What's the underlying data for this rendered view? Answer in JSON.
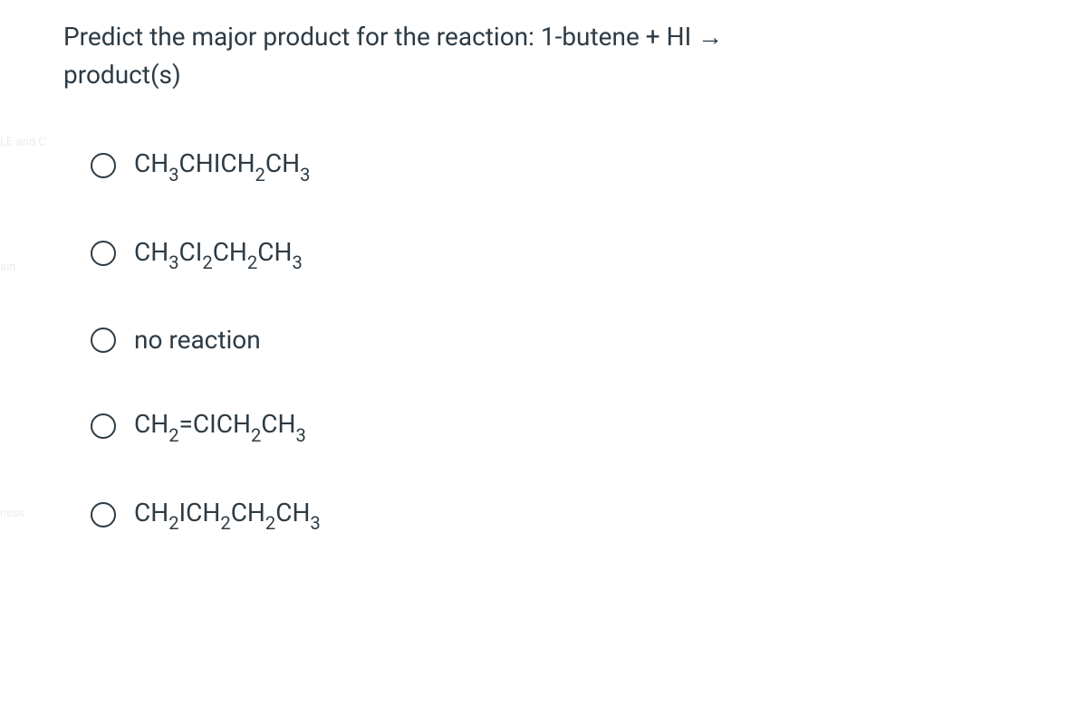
{
  "question": {
    "line1": "Predict the major product for the reaction: 1-butene + HI →",
    "line2": "product(s)"
  },
  "options": [
    {
      "id": "opt-1",
      "segments": [
        {
          "text": "CH",
          "sub": false
        },
        {
          "text": "3",
          "sub": true
        },
        {
          "text": "CHICH",
          "sub": false
        },
        {
          "text": "2",
          "sub": true
        },
        {
          "text": "CH",
          "sub": false
        },
        {
          "text": "3",
          "sub": true
        }
      ]
    },
    {
      "id": "opt-2",
      "segments": [
        {
          "text": "CH",
          "sub": false
        },
        {
          "text": "3",
          "sub": true
        },
        {
          "text": "CI",
          "sub": false
        },
        {
          "text": "2",
          "sub": true
        },
        {
          "text": "CH",
          "sub": false
        },
        {
          "text": "2",
          "sub": true
        },
        {
          "text": "CH",
          "sub": false
        },
        {
          "text": "3",
          "sub": true
        }
      ]
    },
    {
      "id": "opt-3",
      "segments": [
        {
          "text": "no reaction",
          "sub": false
        }
      ]
    },
    {
      "id": "opt-4",
      "segments": [
        {
          "text": "CH",
          "sub": false
        },
        {
          "text": "2",
          "sub": true
        },
        {
          "text": "=CICH",
          "sub": false
        },
        {
          "text": "2",
          "sub": true
        },
        {
          "text": "CH",
          "sub": false
        },
        {
          "text": "3",
          "sub": true
        }
      ]
    },
    {
      "id": "opt-5",
      "segments": [
        {
          "text": "CH",
          "sub": false
        },
        {
          "text": "2",
          "sub": true
        },
        {
          "text": "ICH",
          "sub": false
        },
        {
          "text": "2",
          "sub": true
        },
        {
          "text": "CH",
          "sub": false
        },
        {
          "text": "2",
          "sub": true
        },
        {
          "text": "CH",
          "sub": false
        },
        {
          "text": "3",
          "sub": true
        }
      ]
    }
  ],
  "faded_labels": {
    "l1": "LE and C",
    "l3": "ain",
    "l6": "ness"
  },
  "colors": {
    "text": "#2d3b45",
    "background": "#ffffff",
    "radio_border": "#2d3b45"
  },
  "typography": {
    "question_fontsize": 28,
    "option_fontsize": 28
  }
}
